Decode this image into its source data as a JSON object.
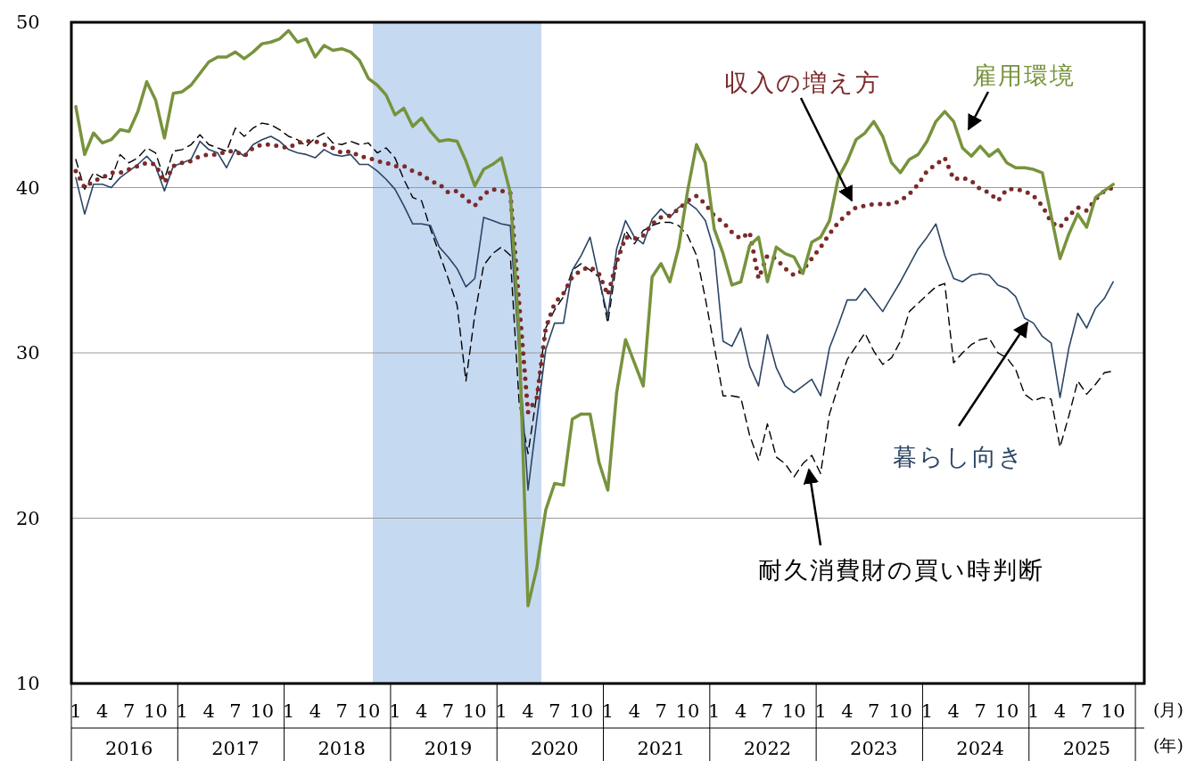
{
  "chart_data": {
    "type": "line",
    "x": [
      "2016-01",
      "2016-02",
      "2016-03",
      "2016-04",
      "2016-05",
      "2016-06",
      "2016-07",
      "2016-08",
      "2016-09",
      "2016-10",
      "2016-11",
      "2016-12",
      "2017-01",
      "2017-02",
      "2017-03",
      "2017-04",
      "2017-05",
      "2017-06",
      "2017-07",
      "2017-08",
      "2017-09",
      "2017-10",
      "2017-11",
      "2017-12",
      "2018-01",
      "2018-02",
      "2018-03",
      "2018-04",
      "2018-05",
      "2018-06",
      "2018-07",
      "2018-08",
      "2018-09",
      "2018-10",
      "2018-11",
      "2018-12",
      "2019-01",
      "2019-02",
      "2019-03",
      "2019-04",
      "2019-05",
      "2019-06",
      "2019-07",
      "2019-08",
      "2019-09",
      "2019-10",
      "2019-11",
      "2019-12",
      "2020-01",
      "2020-02",
      "2020-03",
      "2020-04",
      "2020-05",
      "2020-06",
      "2020-07",
      "2020-08",
      "2020-09",
      "2020-10",
      "2020-11",
      "2020-12",
      "2021-01",
      "2021-02",
      "2021-03",
      "2021-04",
      "2021-05",
      "2021-06",
      "2021-07",
      "2021-08",
      "2021-09",
      "2021-10",
      "2021-11",
      "2021-12",
      "2022-01",
      "2022-02",
      "2022-03",
      "2022-04",
      "2022-05",
      "2022-06",
      "2022-07",
      "2022-08",
      "2022-09",
      "2022-10",
      "2022-11",
      "2022-12",
      "2023-01",
      "2023-02",
      "2023-03",
      "2023-04",
      "2023-05",
      "2023-06",
      "2023-07",
      "2023-08",
      "2023-09",
      "2023-10",
      "2023-11",
      "2023-12",
      "2024-01",
      "2024-02",
      "2024-03",
      "2024-04",
      "2024-05",
      "2024-06",
      "2024-07",
      "2024-08",
      "2024-09",
      "2024-10",
      "2024-11",
      "2024-12",
      "2025-01",
      "2025-02",
      "2025-03",
      "2025-04",
      "2025-05",
      "2025-06",
      "2025-07",
      "2025-08",
      "2025-09",
      "2025-10"
    ],
    "series": [
      {
        "name": "耐久消費財の買い時判断",
        "color": "#000000",
        "line_style": "dashed",
        "values": [
          41.7,
          39.9,
          40.9,
          40.6,
          40.5,
          42.0,
          41.5,
          41.8,
          42.4,
          42.1,
          40.5,
          42.2,
          42.3,
          42.6,
          43.2,
          42.6,
          42.4,
          42.2,
          43.6,
          43.1,
          43.6,
          43.9,
          43.8,
          43.5,
          43.1,
          42.9,
          42.5,
          43.0,
          43.3,
          42.7,
          42.6,
          42.8,
          42.6,
          42.7,
          42.1,
          42.4,
          41.8,
          40.5,
          39.4,
          39.2,
          37.5,
          36.0,
          34.5,
          32.9,
          28.3,
          32.3,
          35.3,
          36.0,
          36.4,
          35.9,
          27.0,
          23.9,
          27.5,
          31.5,
          32.6,
          33.4,
          35.0,
          35.4,
          35.0,
          34.6,
          31.8,
          35.5,
          37.4,
          36.6,
          37.4,
          37.7,
          37.9,
          37.9,
          37.7,
          37.1,
          35.9,
          33.3,
          30.4,
          27.4,
          27.4,
          27.3,
          25.0,
          23.5,
          25.7,
          23.7,
          23.3,
          22.5,
          23.3,
          23.8,
          22.7,
          26.3,
          28.0,
          29.6,
          30.4,
          31.2,
          30.1,
          29.3,
          29.7,
          30.7,
          32.5,
          33.0,
          33.5,
          34.0,
          34.2,
          29.4,
          30.0,
          30.5,
          30.8,
          30.9,
          30.0,
          29.7,
          29.0,
          27.5,
          27.1,
          27.3,
          27.2,
          24.3,
          26.2,
          28.3,
          27.5,
          28.1,
          28.8,
          28.9
        ]
      },
      {
        "name": "暮らし向き",
        "color": "#2b4565",
        "line_style": "solid",
        "values": [
          40.6,
          38.4,
          40.2,
          40.2,
          40.0,
          40.6,
          41.0,
          41.4,
          41.9,
          41.3,
          39.8,
          41.3,
          41.5,
          41.7,
          42.8,
          42.3,
          42.1,
          41.2,
          42.3,
          41.9,
          42.6,
          42.9,
          43.1,
          42.8,
          42.3,
          42.1,
          42.0,
          41.8,
          42.3,
          42.0,
          41.9,
          42.0,
          41.4,
          41.4,
          41.0,
          40.5,
          39.9,
          38.9,
          37.8,
          37.8,
          37.7,
          36.4,
          35.8,
          35.1,
          34.0,
          34.5,
          38.2,
          38.0,
          37.8,
          37.7,
          30.0,
          21.7,
          26.0,
          30.2,
          31.8,
          31.8,
          35.0,
          35.9,
          37.0,
          34.5,
          32.2,
          36.3,
          38.0,
          37.0,
          36.6,
          38.1,
          38.7,
          38.2,
          38.8,
          39.1,
          38.7,
          38.0,
          36.2,
          30.7,
          30.4,
          31.5,
          29.2,
          28.0,
          31.1,
          29.1,
          28.0,
          27.6,
          28.0,
          28.4,
          27.4,
          30.3,
          31.7,
          33.2,
          33.2,
          33.9,
          33.2,
          32.5,
          33.4,
          34.3,
          35.3,
          36.3,
          37.0,
          37.8,
          35.9,
          34.5,
          34.3,
          34.7,
          34.8,
          34.7,
          34.1,
          33.9,
          33.4,
          32.1,
          31.8,
          31.0,
          30.6,
          27.3,
          30.3,
          32.4,
          31.5,
          32.7,
          33.3,
          34.3
        ]
      },
      {
        "name": "収入の増え方",
        "color": "#7b2a2a",
        "line_style": "dotted",
        "values": [
          41.0,
          40.0,
          40.4,
          40.6,
          40.9,
          40.9,
          41.1,
          41.3,
          41.5,
          41.4,
          40.3,
          41.3,
          41.5,
          41.6,
          41.9,
          42.0,
          42.0,
          42.2,
          42.2,
          41.9,
          42.4,
          42.6,
          42.6,
          42.5,
          42.4,
          42.7,
          42.8,
          42.8,
          42.6,
          42.4,
          42.1,
          42.2,
          41.9,
          41.8,
          41.6,
          41.5,
          41.3,
          41.3,
          41.0,
          40.8,
          40.4,
          40.2,
          39.7,
          39.8,
          39.3,
          38.9,
          39.6,
          39.9,
          39.8,
          39.7,
          33.0,
          26.4,
          27.3,
          31.5,
          33.0,
          33.6,
          34.6,
          35.0,
          35.2,
          34.8,
          33.5,
          35.5,
          37.0,
          36.9,
          37.1,
          37.8,
          38.2,
          38.3,
          38.7,
          39.2,
          39.5,
          39.0,
          38.3,
          37.9,
          37.3,
          36.9,
          37.3,
          34.5,
          35.9,
          35.7,
          35.1,
          34.7,
          35.0,
          35.7,
          36.4,
          37.2,
          37.9,
          38.4,
          38.8,
          38.9,
          39.0,
          39.0,
          39.0,
          39.2,
          39.6,
          40.2,
          41.0,
          41.4,
          41.8,
          40.5,
          40.6,
          40.4,
          39.9,
          39.7,
          39.2,
          39.9,
          39.9,
          39.8,
          39.5,
          38.9,
          37.9,
          37.6,
          38.3,
          38.8,
          38.6,
          39.3,
          39.8,
          40.0
        ]
      },
      {
        "name": "雇用環境",
        "color": "#77933c",
        "line_style": "solid",
        "values": [
          44.9,
          42.0,
          43.3,
          42.7,
          42.9,
          43.5,
          43.4,
          44.6,
          46.4,
          45.3,
          43.0,
          45.7,
          45.8,
          46.2,
          46.9,
          47.6,
          47.9,
          47.9,
          48.2,
          47.8,
          48.2,
          48.7,
          48.8,
          49.0,
          49.5,
          48.8,
          49.0,
          47.9,
          48.6,
          48.3,
          48.4,
          48.2,
          47.7,
          46.6,
          46.2,
          45.6,
          44.4,
          44.8,
          43.7,
          44.2,
          43.4,
          42.8,
          42.9,
          42.8,
          41.6,
          40.1,
          41.1,
          41.4,
          41.8,
          39.7,
          31.0,
          14.7,
          17.0,
          20.5,
          22.1,
          22.0,
          26.0,
          26.3,
          26.3,
          23.4,
          21.7,
          27.6,
          30.8,
          29.4,
          28.0,
          34.6,
          35.4,
          34.3,
          36.4,
          39.8,
          42.6,
          41.5,
          37.5,
          36.0,
          34.1,
          34.3,
          36.5,
          37.0,
          34.3,
          36.4,
          36.0,
          35.8,
          34.8,
          36.7,
          37.0,
          38.0,
          40.6,
          41.6,
          42.9,
          43.3,
          44.0,
          43.1,
          41.5,
          40.9,
          41.7,
          42.0,
          42.8,
          44.0,
          44.6,
          44.0,
          42.4,
          41.9,
          42.5,
          41.9,
          42.3,
          41.5,
          41.2,
          41.2,
          41.1,
          40.9,
          38.3,
          35.7,
          37.2,
          38.4,
          37.6,
          39.4,
          39.8,
          40.2
        ]
      }
    ],
    "bands": [
      {
        "axis": "x",
        "from": "2018-10-16",
        "to": "2020-05-16",
        "color": "#c5d9f1"
      }
    ],
    "xlim": [
      "2015-12-16",
      "2026-01-16"
    ],
    "xticks": [
      {
        "value": "2016-01",
        "label": "1"
      },
      {
        "value": "2016-04",
        "label": "4"
      },
      {
        "value": "2016-07",
        "label": "7"
      },
      {
        "value": "2016-10",
        "label": "10"
      },
      {
        "value": "2017-01",
        "label": "1"
      },
      {
        "value": "2017-04",
        "label": "4"
      },
      {
        "value": "2017-07",
        "label": "7"
      },
      {
        "value": "2017-10",
        "label": "10"
      },
      {
        "value": "2018-01",
        "label": "1"
      },
      {
        "value": "2018-04",
        "label": "4"
      },
      {
        "value": "2018-07",
        "label": "7"
      },
      {
        "value": "2018-10",
        "label": "10"
      },
      {
        "value": "2019-01",
        "label": "1"
      },
      {
        "value": "2019-04",
        "label": "4"
      },
      {
        "value": "2019-07",
        "label": "7"
      },
      {
        "value": "2019-10",
        "label": "10"
      },
      {
        "value": "2020-01",
        "label": "1"
      },
      {
        "value": "2020-04",
        "label": "4"
      },
      {
        "value": "2020-07",
        "label": "7"
      },
      {
        "value": "2020-10",
        "label": "10"
      },
      {
        "value": "2021-01",
        "label": "1"
      },
      {
        "value": "2021-04",
        "label": "4"
      },
      {
        "value": "2021-07",
        "label": "7"
      },
      {
        "value": "2021-10",
        "label": "10"
      },
      {
        "value": "2022-01",
        "label": "1"
      },
      {
        "value": "2022-04",
        "label": "4"
      },
      {
        "value": "2022-07",
        "label": "7"
      },
      {
        "value": "2022-10",
        "label": "10"
      },
      {
        "value": "2023-01",
        "label": "1"
      },
      {
        "value": "2023-04",
        "label": "4"
      },
      {
        "value": "2023-07",
        "label": "7"
      },
      {
        "value": "2023-10",
        "label": "10"
      },
      {
        "value": "2024-01",
        "label": "1"
      },
      {
        "value": "2024-04",
        "label": "4"
      },
      {
        "value": "2024-07",
        "label": "7"
      },
      {
        "value": "2024-10",
        "label": "10"
      },
      {
        "value": "2025-01",
        "label": "1"
      },
      {
        "value": "2025-04",
        "label": "4"
      },
      {
        "value": "2025-07",
        "label": "7"
      },
      {
        "value": "2025-10",
        "label": "10"
      }
    ],
    "xlabel": "(月)",
    "x2lim": [
      "2015-12-16",
      "2026-01-16"
    ],
    "x2ticks": [
      {
        "value": "2016-07",
        "label": "2016"
      },
      {
        "value": "2017-07",
        "label": "2017"
      },
      {
        "value": "2018-07",
        "label": "2018"
      },
      {
        "value": "2019-07",
        "label": "2019"
      },
      {
        "value": "2020-07",
        "label": "2020"
      },
      {
        "value": "2021-07",
        "label": "2021"
      },
      {
        "value": "2022-07",
        "label": "2022"
      },
      {
        "value": "2023-07",
        "label": "2023"
      },
      {
        "value": "2024-07",
        "label": "2024"
      },
      {
        "value": "2025-07",
        "label": "2025"
      }
    ],
    "x2label": "(年)",
    "ylim": [
      10,
      50
    ],
    "yticks": [
      10,
      20,
      30,
      40,
      50
    ],
    "grid": "y",
    "legend": false,
    "marker": "none"
  }
}
